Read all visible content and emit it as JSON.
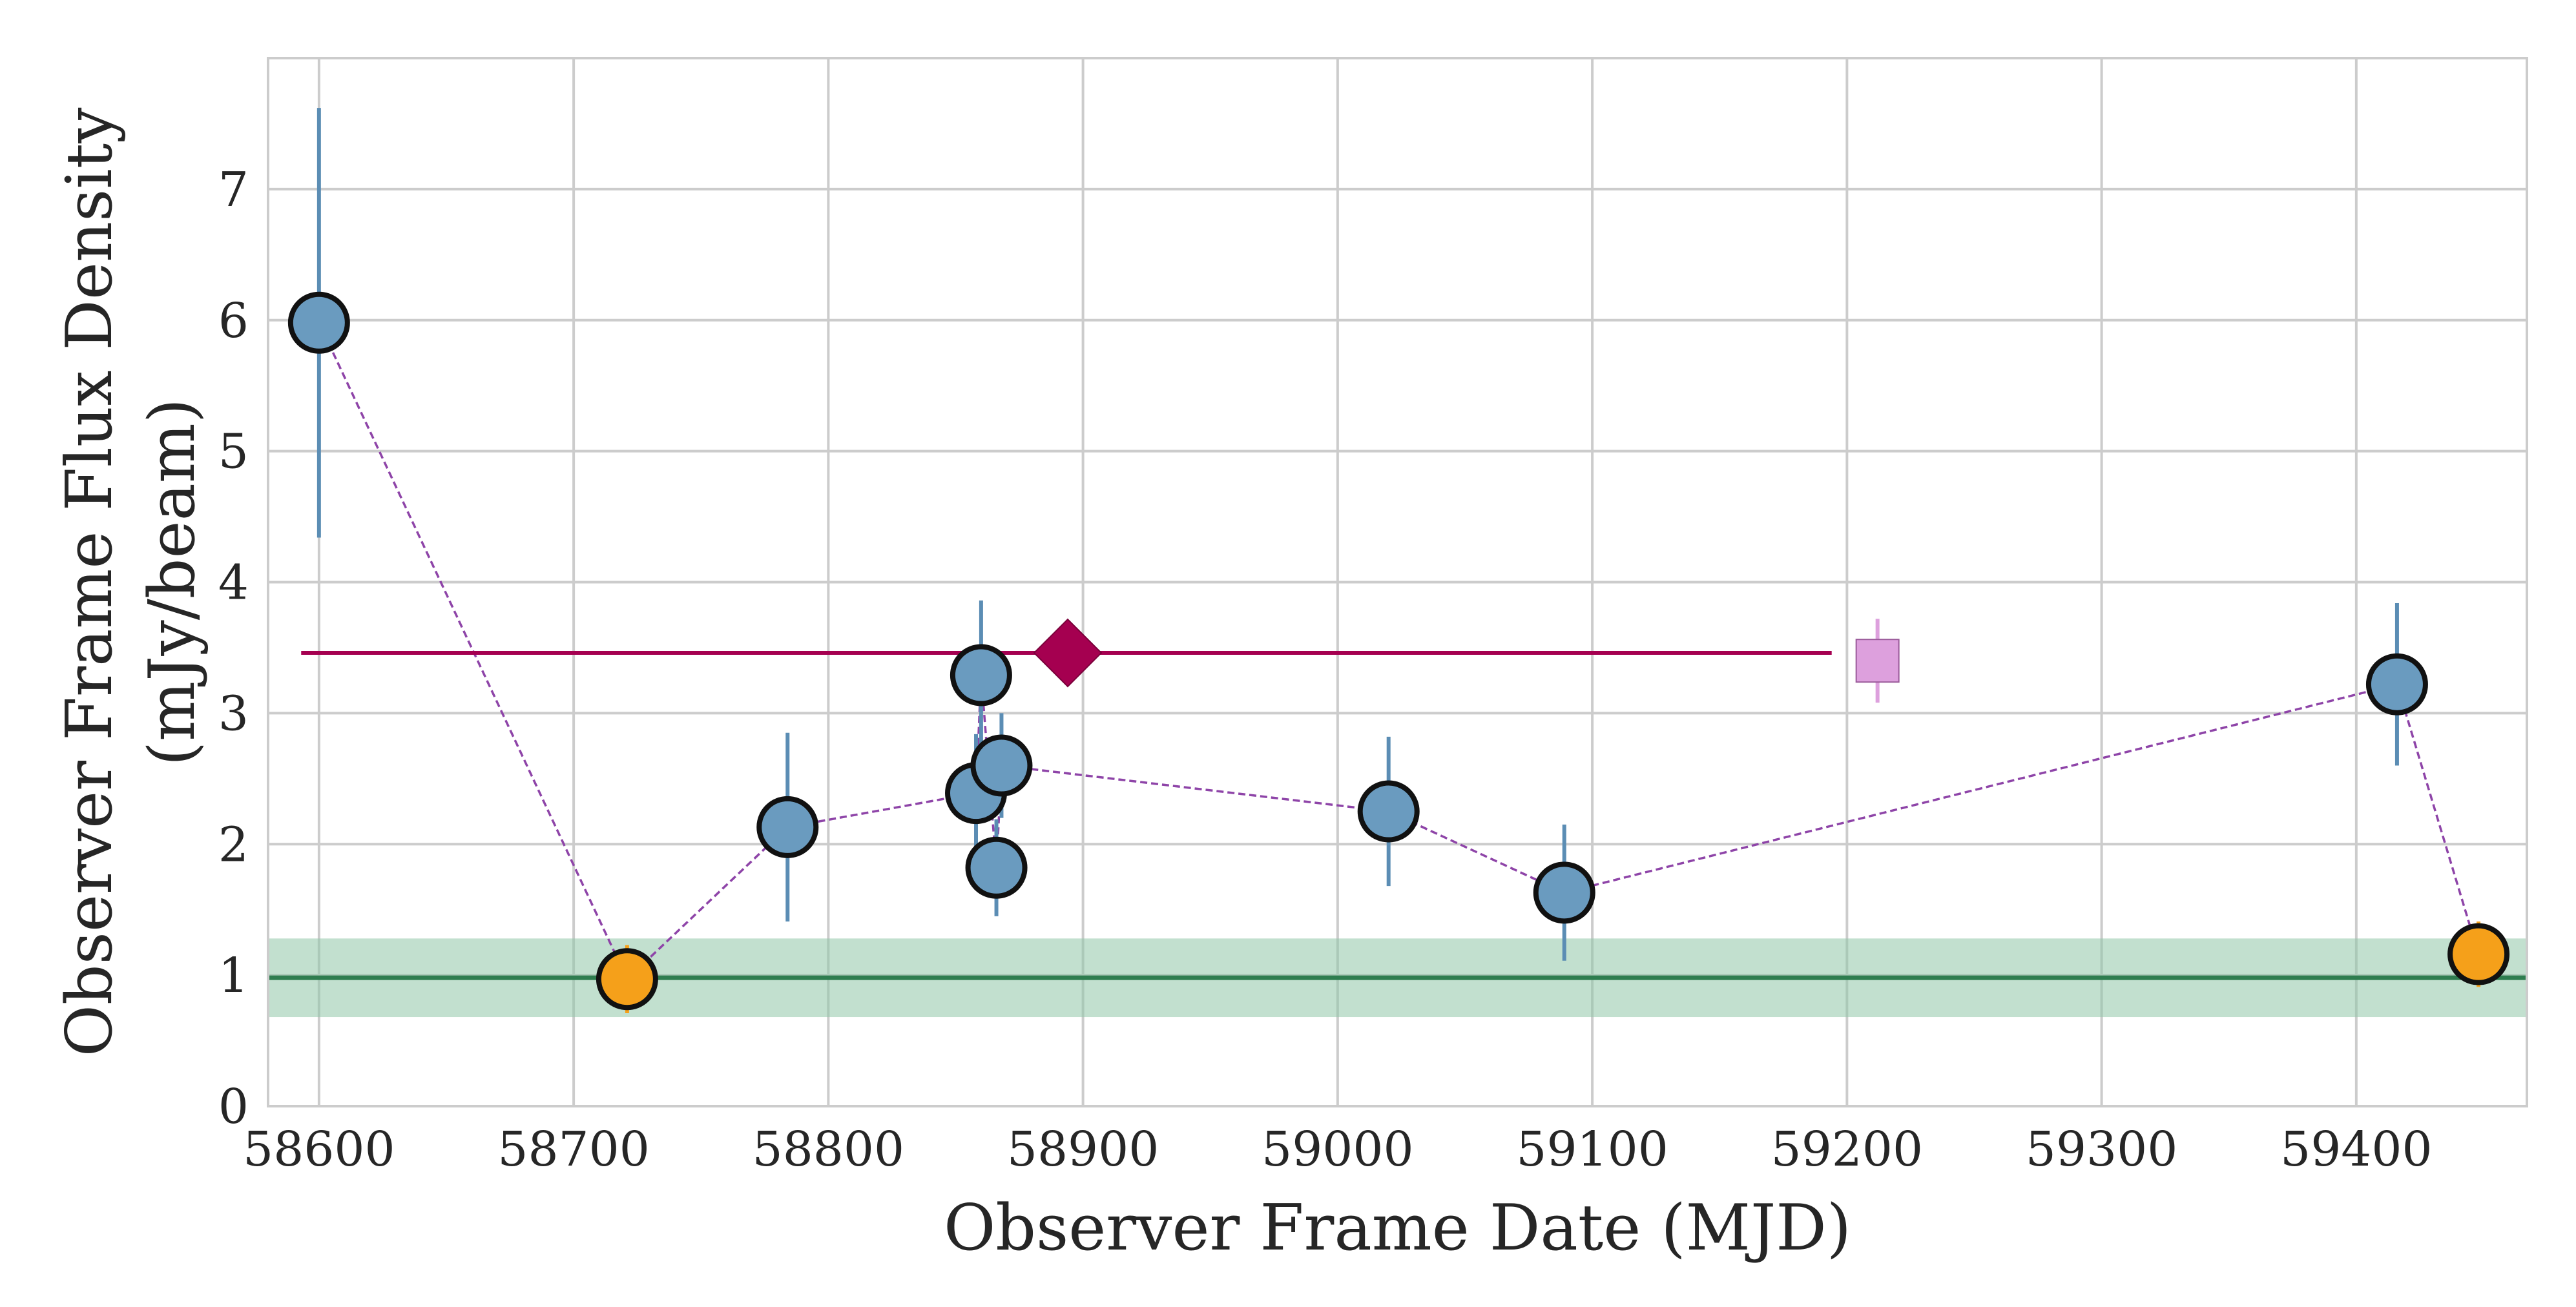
{
  "chart_data": {
    "type": "scatter",
    "xlabel": "Observer Frame Date (MJD)",
    "ylabel_line1": "Observer Frame Flux Density",
    "ylabel_line2": "(mJy/beam)",
    "xlim": [
      58580,
      59467
    ],
    "ylim": [
      0,
      8
    ],
    "xticks": [
      58600,
      58700,
      58800,
      58900,
      59000,
      59100,
      59200,
      59300,
      59400
    ],
    "yticks": [
      0,
      1,
      2,
      3,
      4,
      5,
      6,
      7
    ],
    "xtick_labels": [
      "58600",
      "58700",
      "58800",
      "58900",
      "59000",
      "59100",
      "59200",
      "59300",
      "59400"
    ],
    "ytick_labels": [
      "0",
      "1",
      "2",
      "3",
      "4",
      "5",
      "6",
      "7"
    ],
    "grid": true,
    "series": [
      {
        "marker": "circle",
        "color": "#6a9bbf",
        "edgecolor": "#111111",
        "errcolor": "#5b8db4",
        "points": [
          {
            "x": 58600,
            "y": 5.98,
            "err": 1.64
          },
          {
            "x": 58784,
            "y": 2.13,
            "err": 0.72
          },
          {
            "x": 58858,
            "y": 2.39,
            "err": 0.45
          },
          {
            "x": 58860,
            "y": 3.29,
            "err": 0.57
          },
          {
            "x": 58866,
            "y": 1.82,
            "err": 0.37
          },
          {
            "x": 58868,
            "y": 2.6,
            "err": 0.4
          },
          {
            "x": 59020,
            "y": 2.25,
            "err": 0.57
          },
          {
            "x": 59089,
            "y": 1.63,
            "err": 0.52
          },
          {
            "x": 59416,
            "y": 3.22,
            "err": 0.62
          }
        ]
      },
      {
        "marker": "circle",
        "color": "#f5a01a",
        "edgecolor": "#111111",
        "errcolor": "#f5a01a",
        "points": [
          {
            "x": 58721,
            "y": 0.97,
            "err": 0.26
          },
          {
            "x": 59448,
            "y": 1.16,
            "err": 0.25
          }
        ]
      },
      {
        "marker": "diamond",
        "color": "#a50050",
        "edgecolor": "#7a003a",
        "points": [
          {
            "x": 58894,
            "y": 3.46,
            "xerr_low": 58593,
            "xerr_high": 59194
          }
        ]
      },
      {
        "marker": "square",
        "color": "#dda0dd",
        "edgecolor": "#9a5a9a",
        "errcolor": "#dda0dd",
        "points": [
          {
            "x": 59212,
            "y": 3.4,
            "err": 0.32
          }
        ]
      }
    ],
    "dashed_path": {
      "color": "#8e44a8",
      "x": [
        58600,
        58721,
        58784,
        58858,
        58860,
        58866,
        58868,
        59020,
        59089,
        59416,
        59448
      ],
      "y": [
        5.98,
        0.97,
        2.13,
        2.39,
        3.29,
        1.82,
        2.6,
        2.25,
        1.63,
        3.22,
        1.16
      ]
    },
    "reference_band": {
      "y": 0.98,
      "low": 0.68,
      "high": 1.28,
      "line_color": "#2e7d4f",
      "fill_color": "#8fc7a8"
    }
  }
}
